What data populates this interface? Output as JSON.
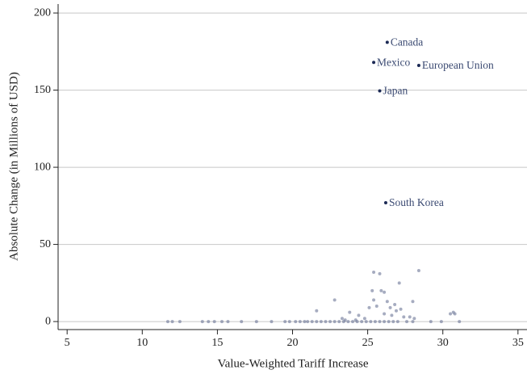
{
  "chart_data": {
    "type": "scatter",
    "x_label": "Value-Weighted Tariff Increase",
    "y_label": "Absolute Change (in Millions of USD)",
    "x": [
      26.3,
      25.4,
      28.4,
      25.8,
      26.2,
      11.7,
      12.0,
      12.5,
      14.0,
      14.4,
      14.8,
      15.3,
      15.7,
      16.6,
      17.6,
      18.6,
      19.5,
      19.8,
      20.2,
      20.5,
      20.8,
      21.0,
      21.3,
      21.6,
      21.9,
      22.2,
      22.5,
      22.8,
      23.1,
      23.4,
      23.7,
      24.0,
      24.3,
      24.6,
      24.9,
      25.2,
      25.5,
      25.8,
      26.1,
      26.4,
      26.7,
      27.0,
      27.6,
      28.0,
      29.2,
      29.9,
      31.1,
      21.6,
      22.8,
      23.3,
      23.8,
      24.4,
      24.8,
      25.1,
      25.3,
      25.4,
      25.4,
      25.8,
      25.9,
      26.1,
      26.1,
      26.3,
      26.5,
      26.6,
      26.8,
      26.9,
      27.1,
      27.2,
      27.4,
      27.8,
      28.0,
      28.1,
      28.4,
      30.5,
      30.7,
      30.8,
      25.6,
      24.2,
      23.5
    ],
    "values": [
      181,
      168,
      166,
      149.5,
      77,
      0,
      0,
      0,
      0,
      0,
      0,
      0,
      0,
      0,
      0,
      0,
      0,
      0,
      0,
      0,
      0,
      0,
      0,
      0,
      0,
      0,
      0,
      0,
      0,
      0,
      0,
      0,
      0,
      0,
      0,
      0,
      0,
      0,
      0,
      0,
      0,
      0,
      0,
      0,
      0,
      0,
      0,
      7,
      14,
      2,
      6,
      4,
      2,
      9,
      20,
      14,
      32,
      31,
      20,
      19,
      5,
      13,
      9,
      4,
      11,
      7,
      25,
      8,
      3,
      3,
      13,
      2,
      33,
      5,
      6,
      5,
      10,
      1,
      1
    ],
    "labels": [
      "Canada",
      "Mexico",
      "European Union",
      "Japan",
      "South Korea",
      null,
      null,
      null,
      null,
      null,
      null,
      null,
      null,
      null,
      null,
      null,
      null,
      null,
      null,
      null,
      null,
      null,
      null,
      null,
      null,
      null,
      null,
      null,
      null,
      null,
      null,
      null,
      null,
      null,
      null,
      null,
      null,
      null,
      null,
      null,
      null,
      null,
      null,
      null,
      null,
      null,
      null,
      null,
      null,
      null,
      null,
      null,
      null,
      null,
      null,
      null,
      null,
      null,
      null,
      null,
      null,
      null,
      null,
      null,
      null,
      null,
      null,
      null,
      null,
      null,
      null,
      null,
      null,
      null,
      null,
      null,
      null,
      null,
      null
    ],
    "point_color": "#6a7596",
    "labeled_point_color": "#1c2a55",
    "label_color": "#3b4a72",
    "xlim": [
      4.4,
      35.6
    ],
    "ylim": [
      -5.2,
      205.8
    ],
    "xticks": [
      5,
      10,
      15,
      20,
      25,
      30,
      35
    ],
    "yticks": [
      0,
      50,
      100,
      150,
      200
    ],
    "grid": true
  }
}
